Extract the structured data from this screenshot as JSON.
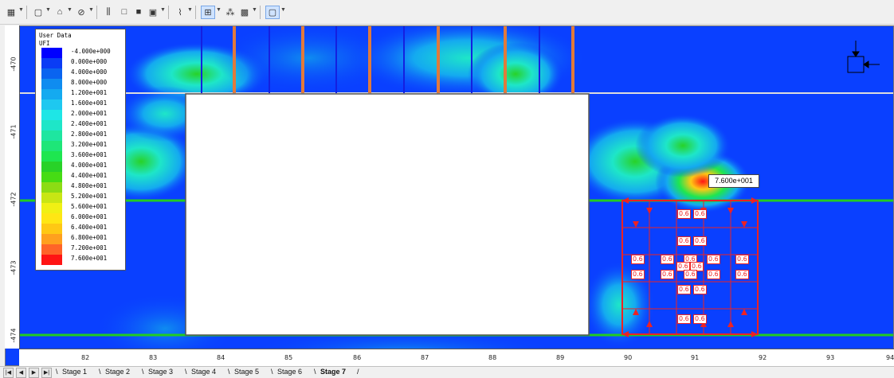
{
  "toolbar": {
    "icons": [
      "grid-icon",
      "new-doc-icon",
      "shape-icon",
      "no-fill-icon",
      "columns-icon",
      "box-icon",
      "fill-box-icon",
      "window-icon",
      "chart-icon",
      "mesh-icon",
      "nodes-icon",
      "grid-view-icon",
      "display-icon"
    ]
  },
  "legend": {
    "title_line1": "User Data",
    "title_line2": "UFI",
    "items": [
      {
        "label": "-4.000e+000",
        "color": "#0000ff"
      },
      {
        "label": "0.000e+000",
        "color": "#0a3cf5"
      },
      {
        "label": "4.000e+000",
        "color": "#0a64f0"
      },
      {
        "label": "8.000e+000",
        "color": "#0f8cf0"
      },
      {
        "label": "1.200e+001",
        "color": "#14aaf0"
      },
      {
        "label": "1.600e+001",
        "color": "#1ec8f0"
      },
      {
        "label": "2.000e+001",
        "color": "#1ee6e6"
      },
      {
        "label": "2.400e+001",
        "color": "#1ee6c8"
      },
      {
        "label": "2.800e+001",
        "color": "#1ee6a0"
      },
      {
        "label": "3.200e+001",
        "color": "#1ee678"
      },
      {
        "label": "3.600e+001",
        "color": "#1ee650"
      },
      {
        "label": "4.000e+001",
        "color": "#28d228"
      },
      {
        "label": "4.400e+001",
        "color": "#46dc14"
      },
      {
        "label": "4.800e+001",
        "color": "#8cdc14"
      },
      {
        "label": "5.200e+001",
        "color": "#c8e614"
      },
      {
        "label": "5.600e+001",
        "color": "#f0f014"
      },
      {
        "label": "6.000e+001",
        "color": "#ffe614"
      },
      {
        "label": "6.400e+001",
        "color": "#ffc814"
      },
      {
        "label": "6.800e+001",
        "color": "#ffa01e"
      },
      {
        "label": "7.200e+001",
        "color": "#ff6428"
      },
      {
        "label": "7.600e+001",
        "color": "#ff1414"
      }
    ]
  },
  "max_value_label": "7.600e+001",
  "load_value": "0.6",
  "vruler": [
    "-470",
    "-471",
    "-472",
    "-473",
    "-474"
  ],
  "hruler": [
    "82",
    "83",
    "84",
    "85",
    "86",
    "87",
    "88",
    "89",
    "90",
    "91",
    "92",
    "93",
    "94"
  ],
  "tabs": [
    "Stage 1",
    "Stage 2",
    "Stage 3",
    "Stage 4",
    "Stage 5",
    "Stage 6",
    "Stage 7"
  ],
  "active_tab": "Stage 7",
  "colors": {
    "background": "#0a40ff",
    "ground_line": "#22cc22",
    "surface_line": "#dddddd",
    "anchor": "#e07a3c",
    "load": "#ee2222"
  }
}
